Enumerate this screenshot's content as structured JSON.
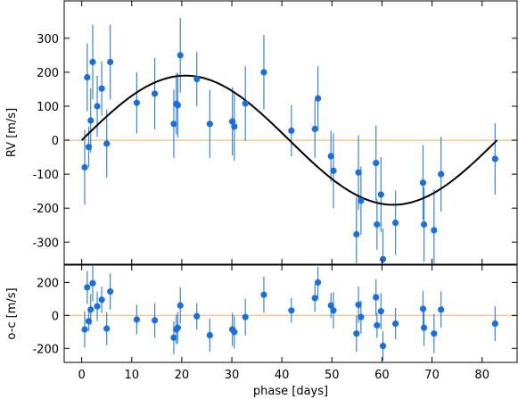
{
  "chart_data": [
    {
      "type": "scatter",
      "panel": "rv",
      "ylabel": "RV [m/s]",
      "xlim": [
        -3.5,
        87
      ],
      "ylim": [
        -365,
        410
      ],
      "xticks": [
        0,
        10,
        20,
        30,
        40,
        50,
        60,
        70,
        80
      ],
      "yticks": [
        -300,
        -200,
        -100,
        0,
        100,
        200,
        300
      ],
      "grid": false,
      "zero_line_color": "#f5c99b",
      "point_color": "#1a6fe0",
      "errorbar_color": "#3a86d8",
      "model": {
        "type": "sinusoid",
        "amplitude": 190,
        "period": 83,
        "x": [
          0,
          83
        ],
        "color": "#000000"
      },
      "points": [
        {
          "x": 0.6,
          "y": -80,
          "err": 110
        },
        {
          "x": 1.1,
          "y": 185,
          "err": 100
        },
        {
          "x": 1.4,
          "y": -20,
          "err": 60
        },
        {
          "x": 1.8,
          "y": 58,
          "err": 95
        },
        {
          "x": 2.2,
          "y": 230,
          "err": 110
        },
        {
          "x": 3.1,
          "y": 100,
          "err": 90
        },
        {
          "x": 4.0,
          "y": 152,
          "err": 80
        },
        {
          "x": 5.0,
          "y": -10,
          "err": 100
        },
        {
          "x": 5.7,
          "y": 230,
          "err": 110
        },
        {
          "x": 11.0,
          "y": 110,
          "err": 90
        },
        {
          "x": 14.6,
          "y": 137,
          "err": 105
        },
        {
          "x": 18.4,
          "y": 48,
          "err": 100
        },
        {
          "x": 18.9,
          "y": 107,
          "err": 90
        },
        {
          "x": 19.2,
          "y": 103,
          "err": 95
        },
        {
          "x": 19.7,
          "y": 250,
          "err": 110
        },
        {
          "x": 23.0,
          "y": 180,
          "err": 80
        },
        {
          "x": 25.6,
          "y": 48,
          "err": 100
        },
        {
          "x": 30.1,
          "y": 55,
          "err": 100
        },
        {
          "x": 30.5,
          "y": 40,
          "err": 100
        },
        {
          "x": 32.7,
          "y": 108,
          "err": 110
        },
        {
          "x": 36.4,
          "y": 200,
          "err": 110
        },
        {
          "x": 41.9,
          "y": 28,
          "err": 75
        },
        {
          "x": 46.6,
          "y": 33,
          "err": 85
        },
        {
          "x": 47.2,
          "y": 123,
          "err": 95
        },
        {
          "x": 49.8,
          "y": -47,
          "err": 75
        },
        {
          "x": 50.3,
          "y": -90,
          "err": 110
        },
        {
          "x": 54.9,
          "y": -277,
          "err": 110
        },
        {
          "x": 55.3,
          "y": -95,
          "err": 110
        },
        {
          "x": 55.8,
          "y": -178,
          "err": 100
        },
        {
          "x": 58.8,
          "y": -67,
          "err": 110
        },
        {
          "x": 59.0,
          "y": -248,
          "err": 75
        },
        {
          "x": 59.8,
          "y": -160,
          "err": 110
        },
        {
          "x": 60.2,
          "y": -350,
          "err": 90
        },
        {
          "x": 62.7,
          "y": -243,
          "err": 95
        },
        {
          "x": 68.2,
          "y": -125,
          "err": 110
        },
        {
          "x": 68.4,
          "y": -248,
          "err": 110
        },
        {
          "x": 70.4,
          "y": -265,
          "err": 120
        },
        {
          "x": 71.8,
          "y": -100,
          "err": 110
        },
        {
          "x": 82.6,
          "y": -55,
          "err": 105
        }
      ]
    },
    {
      "type": "scatter",
      "panel": "residuals",
      "xlabel": "phase [days]",
      "ylabel": "o-c [m/s]",
      "xlim": [
        -3.5,
        87
      ],
      "ylim": [
        -285,
        305
      ],
      "xticks": [
        0,
        10,
        20,
        30,
        40,
        50,
        60,
        70,
        80
      ],
      "yticks": [
        -200,
        0,
        200
      ],
      "grid": false,
      "zero_line_color": "#f5c99b",
      "point_color": "#1a6fe0",
      "errorbar_color": "#3a86d8",
      "points": [
        {
          "x": 0.6,
          "y": -85,
          "err": 110
        },
        {
          "x": 1.1,
          "y": 170,
          "err": 100
        },
        {
          "x": 1.4,
          "y": -35,
          "err": 60
        },
        {
          "x": 1.8,
          "y": 35,
          "err": 95
        },
        {
          "x": 2.2,
          "y": 195,
          "err": 110
        },
        {
          "x": 3.1,
          "y": 55,
          "err": 90
        },
        {
          "x": 4.0,
          "y": 95,
          "err": 80
        },
        {
          "x": 5.0,
          "y": -80,
          "err": 100
        },
        {
          "x": 5.7,
          "y": 145,
          "err": 110
        },
        {
          "x": 11.0,
          "y": -25,
          "err": 90
        },
        {
          "x": 14.6,
          "y": -30,
          "err": 105
        },
        {
          "x": 18.4,
          "y": -135,
          "err": 100
        },
        {
          "x": 18.9,
          "y": -85,
          "err": 90
        },
        {
          "x": 19.2,
          "y": -75,
          "err": 95
        },
        {
          "x": 19.7,
          "y": 60,
          "err": 110
        },
        {
          "x": 23.0,
          "y": -5,
          "err": 80
        },
        {
          "x": 25.6,
          "y": -120,
          "err": 100
        },
        {
          "x": 30.1,
          "y": -85,
          "err": 100
        },
        {
          "x": 30.5,
          "y": -100,
          "err": 100
        },
        {
          "x": 32.7,
          "y": -10,
          "err": 110
        },
        {
          "x": 36.4,
          "y": 125,
          "err": 110
        },
        {
          "x": 41.9,
          "y": 30,
          "err": 75
        },
        {
          "x": 46.6,
          "y": 105,
          "err": 85
        },
        {
          "x": 47.2,
          "y": 200,
          "err": 95
        },
        {
          "x": 49.8,
          "y": 60,
          "err": 75
        },
        {
          "x": 50.3,
          "y": 30,
          "err": 110
        },
        {
          "x": 54.9,
          "y": -110,
          "err": 110
        },
        {
          "x": 55.3,
          "y": 65,
          "err": 110
        },
        {
          "x": 55.8,
          "y": -10,
          "err": 100
        },
        {
          "x": 58.8,
          "y": 110,
          "err": 110
        },
        {
          "x": 59.0,
          "y": -60,
          "err": 75
        },
        {
          "x": 59.8,
          "y": 25,
          "err": 110
        },
        {
          "x": 60.2,
          "y": -185,
          "err": 90
        },
        {
          "x": 62.7,
          "y": -50,
          "err": 95
        },
        {
          "x": 68.2,
          "y": 40,
          "err": 110
        },
        {
          "x": 68.4,
          "y": -75,
          "err": 110
        },
        {
          "x": 70.4,
          "y": -110,
          "err": 120
        },
        {
          "x": 71.8,
          "y": 35,
          "err": 110
        },
        {
          "x": 82.6,
          "y": -50,
          "err": 105
        }
      ]
    }
  ]
}
